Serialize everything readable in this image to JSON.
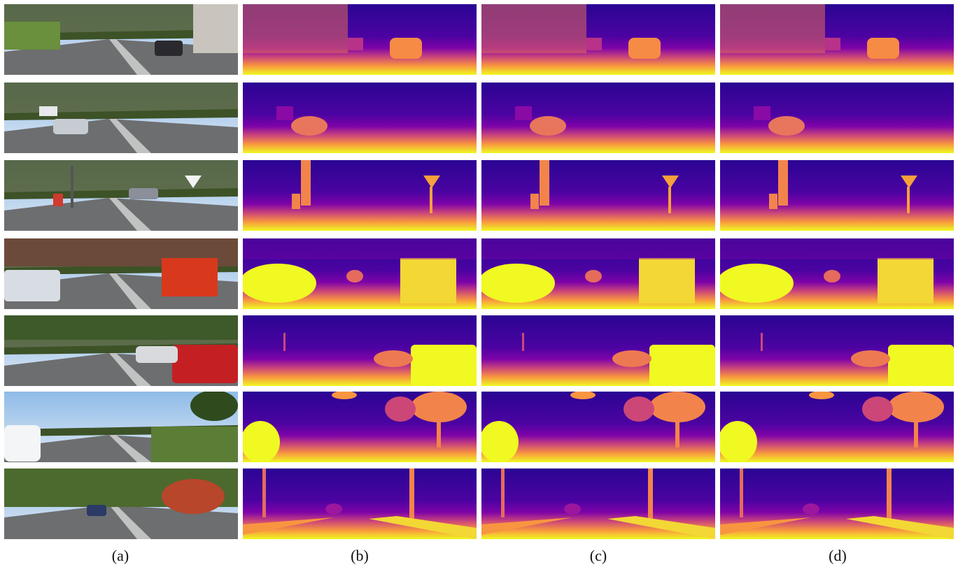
{
  "figure": {
    "columns": [
      {
        "label": "(a)",
        "kind": "rgb-photo"
      },
      {
        "label": "(b)",
        "kind": "depth-map"
      },
      {
        "label": "(c)",
        "kind": "depth-map"
      },
      {
        "label": "(d)",
        "kind": "depth-map"
      }
    ],
    "rows": [
      {
        "scene": "residential-street-parked-cars"
      },
      {
        "scene": "highway-with-truck"
      },
      {
        "scene": "intersection-with-signs"
      },
      {
        "scene": "street-with-red-trailer"
      },
      {
        "scene": "parking-lot-red-car"
      },
      {
        "scene": "rural-road-trees"
      },
      {
        "scene": "bridge-road-cars"
      }
    ],
    "colormap": "plasma",
    "colors": {
      "near": "#f0f921",
      "mid": "#cc4778",
      "far": "#0d0887",
      "background": "#ffffff"
    }
  }
}
